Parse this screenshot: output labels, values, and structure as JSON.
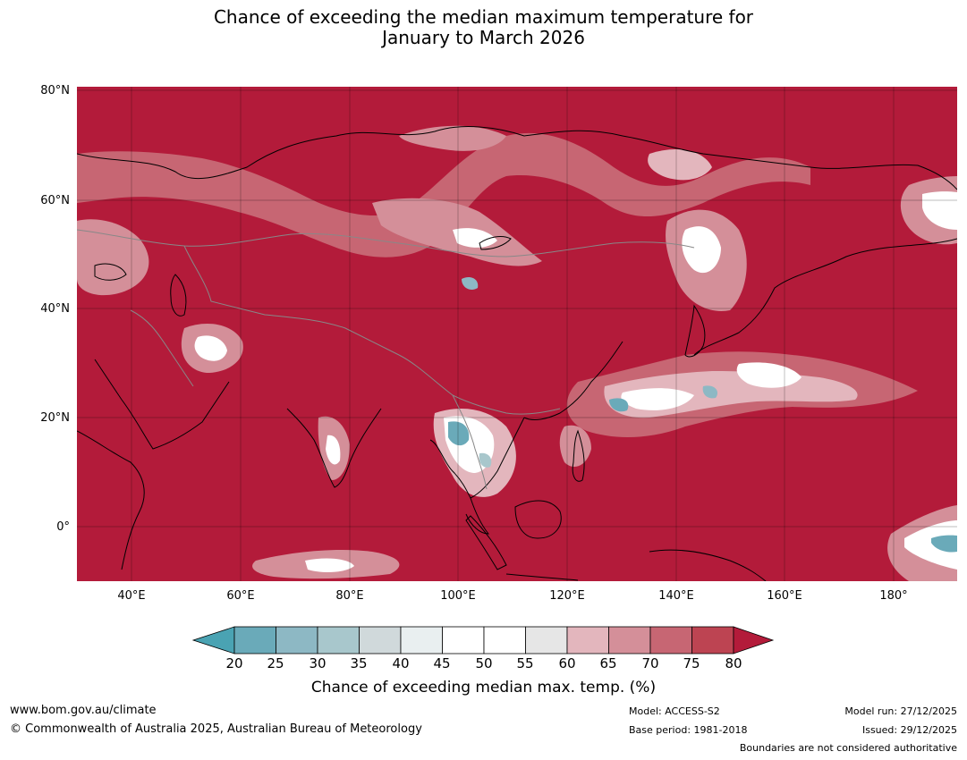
{
  "title_line1": "Chance of exceeding the median maximum temperature for",
  "title_line2": "January to March 2026",
  "map": {
    "lon_range": [
      30,
      191
    ],
    "lat_range": [
      -10,
      81
    ],
    "lat_ticks": [
      "80°N",
      "60°N",
      "40°N",
      "20°N",
      "0°"
    ],
    "lon_ticks": [
      "40°E",
      "60°E",
      "80°E",
      "100°E",
      "120°E",
      "140°E",
      "160°E",
      "180°"
    ],
    "grid": true,
    "base_color": "#b31b3a"
  },
  "colorbar": {
    "ticks": [
      "20",
      "25",
      "30",
      "35",
      "40",
      "45",
      "50",
      "55",
      "60",
      "65",
      "70",
      "75",
      "80"
    ],
    "colors": [
      "#6aaab9",
      "#8db8c4",
      "#a8c7cc",
      "#d0d9db",
      "#e9eff0",
      "#ffffff",
      "#ffffff",
      "#e6e6e6",
      "#e3b6bd",
      "#d48f99",
      "#c76673",
      "#bd4452"
    ],
    "low_extend_color": "#4aa3b3",
    "high_extend_color": "#b31b3a",
    "label": "Chance of exceeding median max. temp. (%)"
  },
  "footer": {
    "website": "www.bom.gov.au/climate",
    "copyright": "© Commonwealth of Australia 2025, Australian Bureau of Meteorology",
    "model": "Model: ACCESS-S2",
    "base_period": "Base period: 1981-2018",
    "model_run": "Model run: 27/12/2025",
    "issued": "Issued: 29/12/2025",
    "disclaimer": "Boundaries are not considered authoritative"
  }
}
